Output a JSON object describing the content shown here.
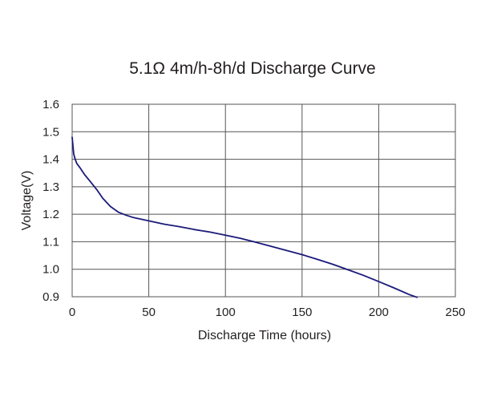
{
  "chart_data": {
    "type": "line",
    "title": "5.1Ω 4m/h-8h/d Discharge Curve",
    "xlabel": "Discharge Time (hours)",
    "ylabel": "Voltage(V)",
    "xlim": [
      0,
      250
    ],
    "ylim": [
      0.9,
      1.6
    ],
    "xticks": [
      "0",
      "50",
      "100",
      "150",
      "200",
      "250"
    ],
    "yticks": [
      "0.9",
      "1.0",
      "1.1",
      "1.2",
      "1.3",
      "1.4",
      "1.5",
      "1.6"
    ],
    "grid": true,
    "line_color": "#1a1a7a",
    "series": [
      {
        "x": [
          0,
          0.5,
          1,
          2,
          3,
          5,
          8,
          12,
          16,
          20,
          25,
          30,
          35,
          40,
          50,
          60,
          70,
          80,
          90,
          100,
          110,
          120,
          130,
          140,
          150,
          160,
          170,
          180,
          190,
          200,
          210,
          220,
          225
        ],
        "y": [
          1.48,
          1.45,
          1.42,
          1.4,
          1.385,
          1.37,
          1.345,
          1.318,
          1.29,
          1.258,
          1.228,
          1.208,
          1.197,
          1.188,
          1.176,
          1.164,
          1.155,
          1.144,
          1.135,
          1.124,
          1.112,
          1.098,
          1.083,
          1.068,
          1.053,
          1.036,
          1.018,
          0.998,
          0.978,
          0.955,
          0.932,
          0.908,
          0.898
        ]
      }
    ]
  }
}
